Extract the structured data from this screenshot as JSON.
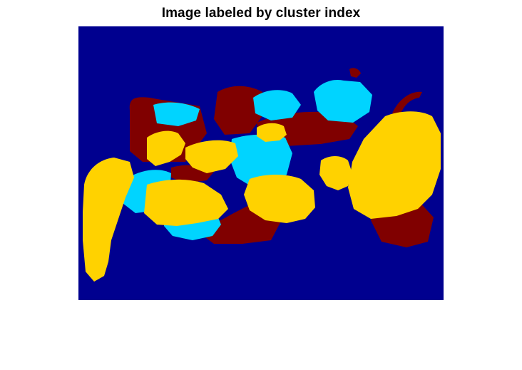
{
  "figure": {
    "title": "Image labeled by cluster index"
  },
  "image": {
    "type": "segmentation-label-image",
    "clusters": [
      {
        "index": 1,
        "color": "#00008f"
      },
      {
        "index": 2,
        "color": "#00d4ff"
      },
      {
        "index": 3,
        "color": "#ffd200"
      },
      {
        "index": 4,
        "color": "#800000"
      }
    ]
  }
}
